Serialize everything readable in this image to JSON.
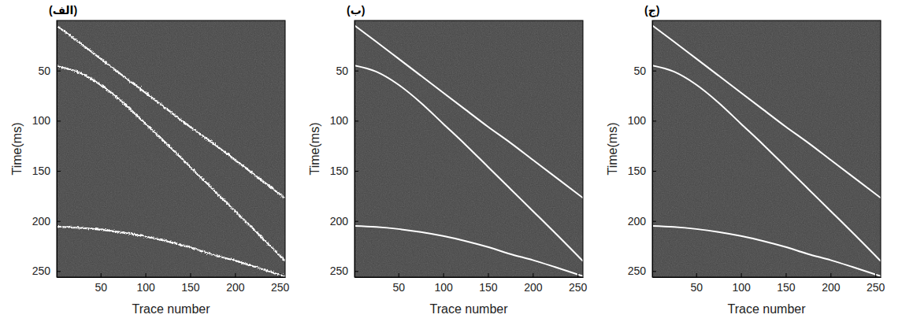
{
  "chart_data": [
    {
      "type": "seismic",
      "title": "(الف)",
      "xlabel": "Trace number",
      "ylabel": "Time(ms)",
      "xlim": [
        1,
        256
      ],
      "ylim": [
        0,
        256
      ],
      "xticks": [
        50,
        100,
        150,
        200,
        250
      ],
      "yticks": [
        50,
        100,
        150,
        200,
        250
      ],
      "color": "#ffffff",
      "line_style": "rough",
      "series": [
        {
          "x": [
            1,
            25,
            50,
            75,
            100,
            125,
            150,
            175,
            200,
            225,
            256
          ],
          "values": [
            5,
            21,
            38,
            55,
            72,
            89,
            106,
            122,
            139,
            156,
            177
          ]
        },
        {
          "x": [
            1,
            25,
            50,
            75,
            100,
            125,
            150,
            175,
            200,
            225,
            256
          ],
          "values": [
            45,
            51,
            64,
            82,
            103,
            124,
            146,
            168,
            190,
            212,
            240
          ]
        },
        {
          "x": [
            1,
            25,
            50,
            75,
            100,
            125,
            150,
            175,
            200,
            225,
            256
          ],
          "values": [
            205,
            206,
            208,
            211,
            215,
            220,
            226,
            233,
            239,
            246,
            255
          ]
        }
      ]
    },
    {
      "type": "seismic",
      "title": "(ب)",
      "xlabel": "Trace number",
      "ylabel": "Time(ms)",
      "xlim": [
        1,
        256
      ],
      "ylim": [
        0,
        256
      ],
      "xticks": [
        50,
        100,
        150,
        200,
        250
      ],
      "yticks": [
        50,
        100,
        150,
        200,
        250
      ],
      "color": "#ffffff",
      "line_style": "solid",
      "series": [
        {
          "x": [
            1,
            25,
            50,
            75,
            100,
            125,
            150,
            175,
            200,
            225,
            256
          ],
          "values": [
            5,
            21,
            38,
            55,
            72,
            89,
            106,
            122,
            139,
            156,
            177
          ]
        },
        {
          "x": [
            1,
            25,
            50,
            75,
            100,
            125,
            150,
            175,
            200,
            225,
            256
          ],
          "values": [
            45,
            51,
            64,
            82,
            103,
            124,
            146,
            168,
            190,
            212,
            240
          ]
        },
        {
          "x": [
            1,
            25,
            50,
            75,
            100,
            125,
            150,
            175,
            200,
            225,
            256
          ],
          "values": [
            205,
            206,
            208,
            211,
            215,
            220,
            226,
            233,
            239,
            246,
            255
          ]
        }
      ]
    },
    {
      "type": "seismic",
      "title": "(ج)",
      "xlabel": "Trace number",
      "ylabel": "Time(ms)",
      "xlim": [
        1,
        256
      ],
      "ylim": [
        0,
        256
      ],
      "xticks": [
        50,
        100,
        150,
        200,
        250
      ],
      "yticks": [
        50,
        100,
        150,
        200,
        250
      ],
      "color": "#ffffff",
      "line_style": "solid",
      "series": [
        {
          "x": [
            1,
            25,
            50,
            75,
            100,
            125,
            150,
            175,
            200,
            225,
            256
          ],
          "values": [
            5,
            21,
            38,
            55,
            72,
            89,
            106,
            122,
            139,
            156,
            177
          ]
        },
        {
          "x": [
            1,
            25,
            50,
            75,
            100,
            125,
            150,
            175,
            200,
            225,
            256
          ],
          "values": [
            45,
            51,
            64,
            82,
            103,
            124,
            146,
            168,
            190,
            212,
            240
          ]
        },
        {
          "x": [
            1,
            25,
            50,
            75,
            100,
            125,
            150,
            175,
            200,
            225,
            256
          ],
          "values": [
            205,
            206,
            208,
            211,
            215,
            220,
            226,
            233,
            239,
            246,
            255
          ]
        }
      ]
    }
  ]
}
